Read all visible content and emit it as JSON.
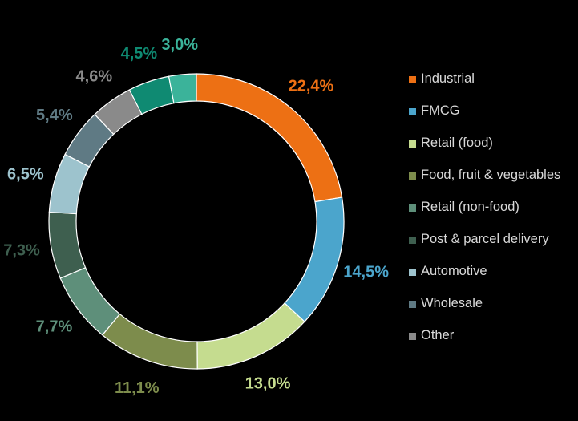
{
  "chart_data": {
    "type": "pie",
    "variant": "donut",
    "legend_position": "right",
    "series": [
      {
        "name": "Industrial",
        "value": 22.4,
        "label": "22,4%",
        "color": "#ed7014"
      },
      {
        "name": "FMCG",
        "value": 14.5,
        "label": "14,5%",
        "color": "#4ba5cc"
      },
      {
        "name": "Retail (food)",
        "value": 13.0,
        "label": "13,0%",
        "color": "#c5dc8f"
      },
      {
        "name": "Food, fruit & vegetables",
        "value": 11.1,
        "label": "11,1%",
        "color": "#7d8c4c"
      },
      {
        "name": "Retail (non-food)",
        "value": 7.7,
        "label": "7,7%",
        "color": "#5e8f7a"
      },
      {
        "name": "Post & parcel delivery",
        "value": 7.3,
        "label": "7,3%",
        "color": "#3e5f4f"
      },
      {
        "name": "Automotive",
        "value": 6.5,
        "label": "6,5%",
        "color": "#9dc3cd"
      },
      {
        "name": "Wholesale",
        "value": 5.4,
        "label": "5,4%",
        "color": "#5f7a84"
      },
      {
        "name": "Other",
        "value": 4.6,
        "label": "4,6%",
        "color": "#8a8a8a"
      },
      {
        "name": "",
        "value": 4.5,
        "label": "4,5%",
        "color": "#0f8a72"
      },
      {
        "name": "",
        "value": 3.0,
        "label": "3,0%",
        "color": "#3bb39a"
      }
    ]
  }
}
